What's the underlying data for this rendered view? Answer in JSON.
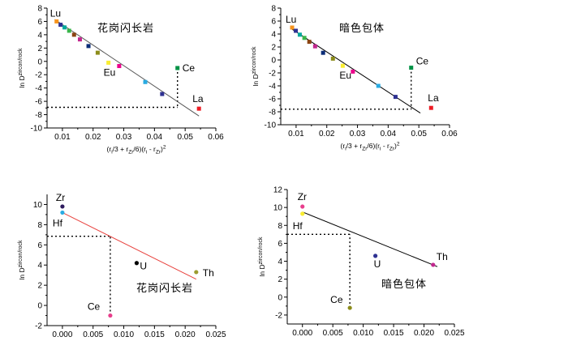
{
  "chart_data": [
    {
      "type": "scatter",
      "title": "花岗闪长岩",
      "ylabel": "ln D",
      "ylabel_sup": "zircon/rock",
      "xlabel_parts": [
        "(r",
        "i",
        "/3 + r",
        "Zr",
        "/6)(r",
        "i",
        " - r",
        "Zr",
        ")",
        "2"
      ],
      "xlim": [
        0.005,
        0.06
      ],
      "ylim": [
        -10,
        8
      ],
      "xticks": [
        "0.01",
        "0.02",
        "0.03",
        "0.04",
        "0.05",
        "0.06"
      ],
      "xtick_values": [
        0.01,
        0.02,
        0.03,
        0.04,
        0.05,
        0.06
      ],
      "yticks": [
        "-10",
        "-8",
        "-6",
        "-4",
        "-2",
        "0",
        "2",
        "4",
        "6",
        "8"
      ],
      "ytick_values": [
        -10,
        -8,
        -6,
        -4,
        -2,
        0,
        2,
        4,
        6,
        8
      ],
      "fit_line": {
        "x": [
          0.0075,
          0.0545
        ],
        "y": [
          6.3,
          -8.2
        ],
        "color": "#555555"
      },
      "guide_h_y": -6.9,
      "guide_v": {
        "x": 0.0475,
        "y_from": -1.0,
        "y_to": -6.9
      },
      "points": [
        {
          "x": 0.0081,
          "y": 6.0,
          "color": "#f7941d",
          "label": "Lu"
        },
        {
          "x": 0.0094,
          "y": 5.5,
          "color": "#2e3192",
          "label": ""
        },
        {
          "x": 0.0107,
          "y": 5.1,
          "color": "#00a99d",
          "label": ""
        },
        {
          "x": 0.0122,
          "y": 4.6,
          "color": "#39b54a",
          "label": ""
        },
        {
          "x": 0.0138,
          "y": 4.0,
          "color": "#8b4513",
          "label": ""
        },
        {
          "x": 0.0157,
          "y": 3.3,
          "color": "#c2278f",
          "label": ""
        },
        {
          "x": 0.0185,
          "y": 2.3,
          "color": "#0b2d78",
          "label": ""
        },
        {
          "x": 0.0215,
          "y": 1.3,
          "color": "#8c8c1a",
          "label": ""
        },
        {
          "x": 0.025,
          "y": -0.2,
          "color": "#f9ed32",
          "label": "Eu"
        },
        {
          "x": 0.0285,
          "y": -0.7,
          "color": "#ec008c",
          "label": ""
        },
        {
          "x": 0.037,
          "y": -3.1,
          "color": "#29abe2",
          "label": ""
        },
        {
          "x": 0.0425,
          "y": -4.9,
          "color": "#2e3192",
          "label": ""
        },
        {
          "x": 0.0475,
          "y": -1.0,
          "color": "#009245",
          "label": "Ce"
        },
        {
          "x": 0.0545,
          "y": -7.1,
          "color": "#ed1c24",
          "label": "La"
        }
      ]
    },
    {
      "type": "scatter",
      "title": "暗色包体",
      "ylabel": "ln D",
      "ylabel_sup": "zircon/rock",
      "xlabel_parts": [
        "(r",
        "i",
        "/3 + r",
        "Zr",
        "/6)(r",
        "i",
        " - r",
        "Zr",
        ")",
        "2"
      ],
      "xlim": [
        0.005,
        0.06
      ],
      "ylim": [
        -10,
        8
      ],
      "xticks": [
        "0.01",
        "0.02",
        "0.03",
        "0.04",
        "0.05",
        "0.06"
      ],
      "xtick_values": [
        0.01,
        0.02,
        0.03,
        0.04,
        0.05,
        0.06
      ],
      "yticks": [
        "-10",
        "-8",
        "-6",
        "-4",
        "-2",
        "0",
        "2",
        "4",
        "6",
        "8"
      ],
      "ytick_values": [
        -10,
        -8,
        -6,
        -4,
        -2,
        0,
        2,
        4,
        6,
        8
      ],
      "fit_line": {
        "x": [
          0.0085,
          0.0505
        ],
        "y": [
          4.8,
          -8.2
        ],
        "color": "#000000"
      },
      "guide_h_y": -7.6,
      "guide_v": {
        "x": 0.0475,
        "y_from": -1.2,
        "y_to": -7.6
      },
      "points": [
        {
          "x": 0.0087,
          "y": 5.0,
          "color": "#f7941d",
          "label": "Lu"
        },
        {
          "x": 0.0099,
          "y": 4.5,
          "color": "#2e3192",
          "label": ""
        },
        {
          "x": 0.0112,
          "y": 3.9,
          "color": "#00a99d",
          "label": ""
        },
        {
          "x": 0.0127,
          "y": 3.4,
          "color": "#39b54a",
          "label": ""
        },
        {
          "x": 0.0143,
          "y": 2.8,
          "color": "#8b4513",
          "label": ""
        },
        {
          "x": 0.0162,
          "y": 2.1,
          "color": "#c2278f",
          "label": ""
        },
        {
          "x": 0.0188,
          "y": 1.1,
          "color": "#0b2d78",
          "label": ""
        },
        {
          "x": 0.022,
          "y": 0.2,
          "color": "#8c8c1a",
          "label": ""
        },
        {
          "x": 0.0252,
          "y": -0.9,
          "color": "#f9ed32",
          "label": "Eu"
        },
        {
          "x": 0.0285,
          "y": -1.8,
          "color": "#ec008c",
          "label": ""
        },
        {
          "x": 0.0368,
          "y": -4.0,
          "color": "#29abe2",
          "label": ""
        },
        {
          "x": 0.0424,
          "y": -5.7,
          "color": "#2e3192",
          "label": ""
        },
        {
          "x": 0.0475,
          "y": -1.2,
          "color": "#009245",
          "label": "Ce"
        },
        {
          "x": 0.054,
          "y": -7.4,
          "color": "#ed1c24",
          "label": "La"
        }
      ]
    },
    {
      "type": "scatter",
      "title": "花岗闪长岩",
      "ylabel": "ln D",
      "ylabel_sup": "zircon/rock",
      "xlabel_parts": [
        "(r",
        "i",
        "/3 + r",
        "Zr",
        "/6)(r",
        "i",
        " - r",
        "Zr",
        ")",
        "2"
      ],
      "xlim": [
        -0.0025,
        0.025
      ],
      "ylim": [
        -2,
        11
      ],
      "xticks": [
        "0.000",
        "0.005",
        "0.010",
        "0.015",
        "0.020",
        "0.025"
      ],
      "xtick_values": [
        0.0,
        0.005,
        0.01,
        0.015,
        0.02,
        0.025
      ],
      "yticks": [
        "-2",
        "0",
        "2",
        "4",
        "6",
        "8",
        "10"
      ],
      "ytick_values": [
        -2,
        0,
        2,
        4,
        6,
        8,
        10
      ],
      "fit_line": {
        "x": [
          0.0,
          0.0218
        ],
        "y": [
          9.2,
          2.6
        ],
        "color": "#e8403c"
      },
      "guide_h_y": 6.85,
      "guide_v": {
        "x": 0.0078,
        "y_from": -1.0,
        "y_to": 6.85
      },
      "points": [
        {
          "x": 0.0,
          "y": 9.8,
          "color": "#2e1b5e",
          "label": "Zr"
        },
        {
          "x": 0.0,
          "y": 9.2,
          "color": "#29abe2",
          "label": "Hf"
        },
        {
          "x": 0.0121,
          "y": 4.2,
          "color": "#000000",
          "label": "U"
        },
        {
          "x": 0.0218,
          "y": 3.3,
          "color": "#9c9c30",
          "label": "Th"
        },
        {
          "x": 0.0078,
          "y": -1.0,
          "color": "#e83e8c",
          "label": "Ce"
        }
      ]
    },
    {
      "type": "scatter",
      "title": "暗色包体",
      "ylabel": "ln D",
      "ylabel_sup": "zircon/rock",
      "xlabel_parts": [
        "(r",
        "i",
        "/3 + r",
        "Zr",
        "/6)(r",
        "i",
        " - r",
        "Zr",
        ")",
        "2"
      ],
      "xlim": [
        -0.0025,
        0.025
      ],
      "ylim": [
        -3,
        12
      ],
      "xticks": [
        "0.000",
        "0.005",
        "0.010",
        "0.015",
        "0.020",
        "0.025"
      ],
      "xtick_values": [
        0.0,
        0.005,
        0.01,
        0.015,
        0.02,
        0.025
      ],
      "yticks": [
        "-2",
        "0",
        "2",
        "4",
        "6",
        "8",
        "10",
        "12"
      ],
      "ytick_values": [
        -2,
        0,
        2,
        4,
        6,
        8,
        10,
        12
      ],
      "fit_line": {
        "x": [
          0.0,
          0.0222
        ],
        "y": [
          9.5,
          3.4
        ],
        "color": "#000000"
      },
      "guide_h_y": 7.0,
      "guide_v": {
        "x": 0.0078,
        "y_from": -1.2,
        "y_to": 7.0
      },
      "points": [
        {
          "x": 0.0,
          "y": 10.1,
          "color": "#e83e8c",
          "label": "Zr"
        },
        {
          "x": 0.0,
          "y": 9.3,
          "color": "#f9ed32",
          "label": "Hf"
        },
        {
          "x": 0.012,
          "y": 4.6,
          "color": "#2e3192",
          "label": "U"
        },
        {
          "x": 0.0215,
          "y": 3.6,
          "color": "#c2278f",
          "label": "Th"
        },
        {
          "x": 0.0078,
          "y": -1.2,
          "color": "#8c8c1a",
          "label": "Ce"
        }
      ]
    }
  ]
}
